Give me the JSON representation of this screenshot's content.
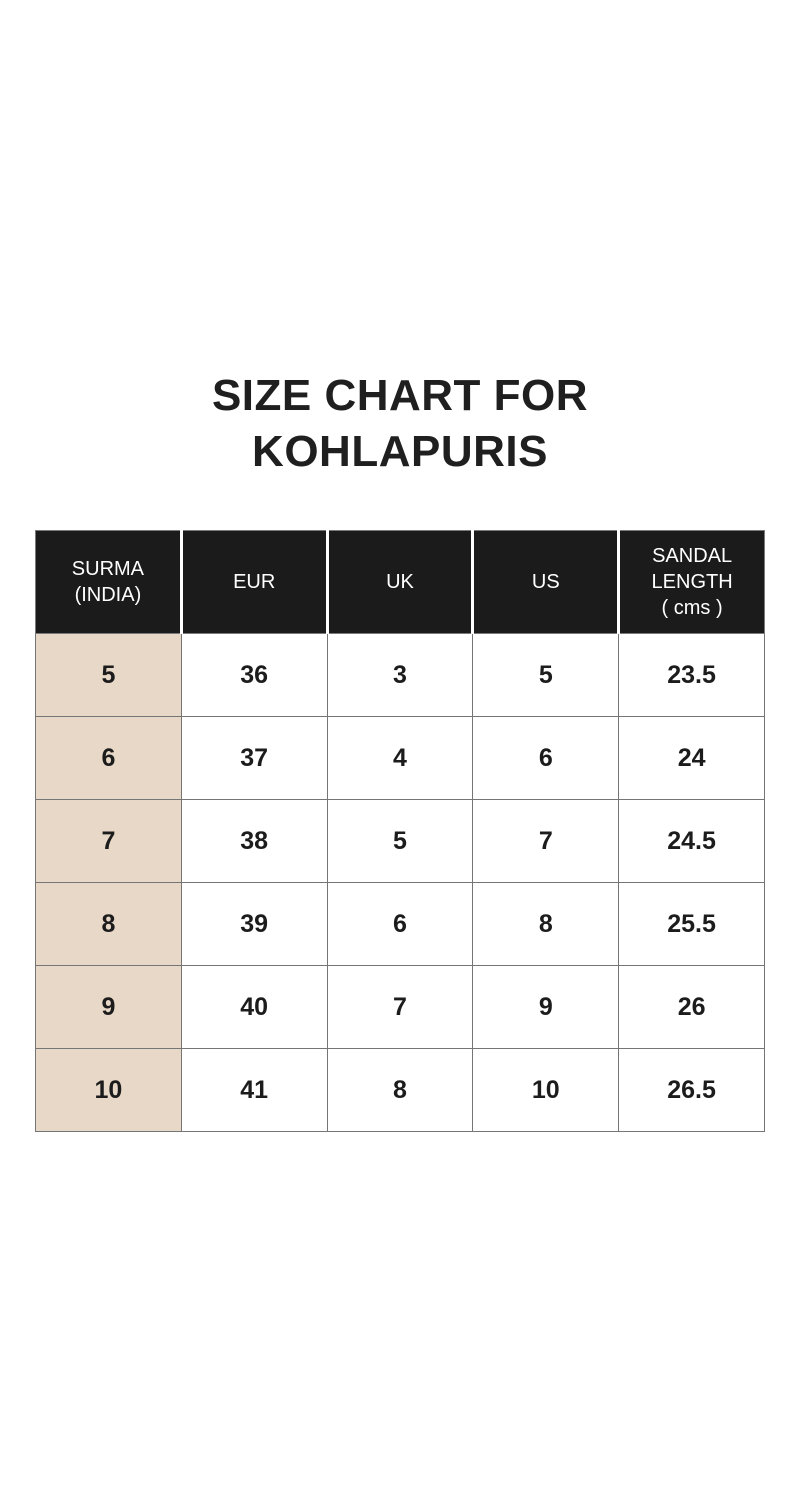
{
  "title": {
    "line1": "SIZE CHART FOR",
    "line2": "KOHLAPURIS"
  },
  "colors": {
    "header_bg": "#1b1b1b",
    "header_text": "#ffffff",
    "first_column_bg": "#e8d8c7",
    "cell_border": "#757575",
    "title_text": "#1f1f1f"
  },
  "chart_data": {
    "type": "table",
    "title": "SIZE CHART FOR KOHLAPURIS",
    "columns": [
      "SURMA\n(INDIA)",
      "EUR",
      "UK",
      "US",
      "SANDAL\nLENGTH\n( cms )"
    ],
    "rows": [
      [
        "5",
        "36",
        "3",
        "5",
        "23.5"
      ],
      [
        "6",
        "37",
        "4",
        "6",
        "24"
      ],
      [
        "7",
        "38",
        "5",
        "7",
        "24.5"
      ],
      [
        "8",
        "39",
        "6",
        "8",
        "25.5"
      ],
      [
        "9",
        "40",
        "7",
        "9",
        "26"
      ],
      [
        "10",
        "41",
        "8",
        "10",
        "26.5"
      ]
    ]
  }
}
